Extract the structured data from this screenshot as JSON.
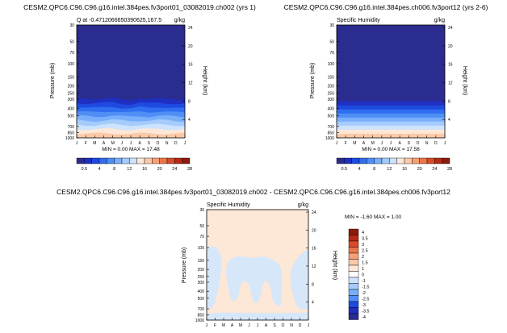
{
  "chart_data": [
    {
      "type": "heatmap",
      "title": "CESM2.QPC6.C96.C96.g16.intel.384pes.fv3port01_03082019.ch002 (yrs 1)",
      "left_label": "Q at -0.4712066650390625,167.5",
      "right_label": "g/kg",
      "ylabel": "Pressure (mb)",
      "ylabel_right": "Height (km)",
      "x_ticks": [
        "J",
        "F",
        "M",
        "A",
        "M",
        "J",
        "J",
        "A",
        "S",
        "O",
        "N",
        "D",
        "J"
      ],
      "y_ticks": [
        "30",
        "50",
        "70",
        "100",
        "150",
        "200",
        "250",
        "300",
        "400",
        "500",
        "700",
        "850",
        "1000"
      ],
      "height_ticks": [
        "24",
        "20",
        "16",
        "12",
        "8",
        "4"
      ],
      "stats": "MIN = 0.00 MAX = 17.48",
      "colorbar_labels": [
        "0.5",
        "4",
        "8",
        "12",
        "16",
        "20",
        "24",
        "28"
      ],
      "boundary_pressure": [
        290,
        300,
        305,
        295,
        285,
        300,
        310,
        295,
        300,
        290,
        295,
        305,
        310
      ]
    },
    {
      "type": "heatmap",
      "title": "CESM2.QPC6.C96.C96.g16.intel.384pes.ch006.fv3port12 (yrs 2-6)",
      "left_label": "Specific Humidity",
      "right_label": "g/kg",
      "ylabel": "Pressure (mb)",
      "ylabel_right": "Height (km)",
      "x_ticks": [
        "J",
        "F",
        "M",
        "A",
        "M",
        "J",
        "J",
        "A",
        "S",
        "O",
        "N",
        "D",
        "J"
      ],
      "y_ticks": [
        "30",
        "50",
        "70",
        "100",
        "150",
        "200",
        "250",
        "300",
        "400",
        "500",
        "700",
        "850",
        "1000"
      ],
      "height_ticks": [
        "24",
        "20",
        "16",
        "12",
        "8",
        "4"
      ],
      "stats": "MIN = 0.00 MAX = 17.58",
      "colorbar_labels": [
        "0.5",
        "4",
        "8",
        "12",
        "16",
        "20",
        "24",
        "28"
      ],
      "boundary_pressure": [
        320,
        320,
        320,
        320,
        320,
        320,
        320,
        320,
        320,
        320,
        320,
        320,
        320
      ]
    },
    {
      "type": "heatmap",
      "title": "CESM2.QPC6.C96.C96.g16.intel.384pes.fv3port01_03082019.ch002 - CESM2.QPC6.C96.C96.g16.intel.384pes.ch006.fv3port12",
      "left_label": "Specific Humidity",
      "right_label": "g/kg",
      "ylabel": "Pressure (mb)",
      "ylabel_right": "Height (km)",
      "x_ticks": [
        "J",
        "F",
        "M",
        "A",
        "M",
        "J",
        "J",
        "A",
        "S",
        "O",
        "N",
        "D",
        "J"
      ],
      "y_ticks": [
        "30",
        "50",
        "70",
        "100",
        "150",
        "200",
        "250",
        "300",
        "400",
        "500",
        "700",
        "850",
        "1000"
      ],
      "height_ticks": [
        "24",
        "20",
        "16",
        "12",
        "8",
        "4"
      ],
      "stats": "MIN = -1.60 MAX = 1.00",
      "colorbar_labels": [
        "4",
        "3.5",
        "3",
        "2.5",
        "2",
        "1.5",
        "1",
        "0",
        "-1",
        "-1.5",
        "-2",
        "-2.5",
        "-3",
        "-3.5",
        "-4"
      ]
    }
  ],
  "colors": {
    "moist_scale": [
      "#2b2c8f",
      "#1f2fc0",
      "#1f4ae0",
      "#2f6ef0",
      "#4f8ff5",
      "#78aefa",
      "#a4cbfc",
      "#cde3fd",
      "#fde7d6",
      "#fbc9a8",
      "#f5a077",
      "#ec7548",
      "#d94a28",
      "#b52a16",
      "#8e1a0e"
    ],
    "diff_scale": [
      "#8e1a0e",
      "#b52a16",
      "#d94a28",
      "#ec7548",
      "#f5a077",
      "#fbc9a8",
      "#fde7d6",
      "#ffffff",
      "#cde3fd",
      "#a4cbfc",
      "#78aefa",
      "#4f8ff5",
      "#1f4ae0",
      "#1f2fc0",
      "#2b2c8f"
    ],
    "diff_pos": "#fde7d6",
    "diff_neg": "#d6e7fa"
  }
}
